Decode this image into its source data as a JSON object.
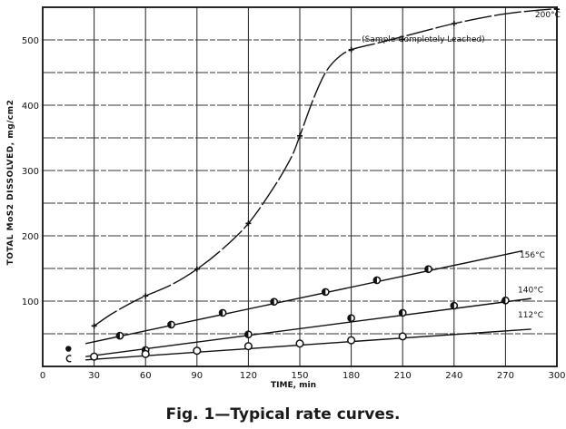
{
  "chart_data": {
    "type": "line",
    "title": "",
    "caption": "Fig. 1—Typical rate curves.",
    "xlabel": "TIME, min",
    "ylabel": "TOTAL MoS2 DISSOLVED, mg/cm2",
    "xlim": [
      0,
      300
    ],
    "ylim": [
      0,
      550
    ],
    "x_ticks": [
      0,
      30,
      60,
      90,
      120,
      150,
      180,
      210,
      240,
      270,
      300
    ],
    "y_ticks": [
      100,
      200,
      300,
      400,
      500
    ],
    "y_tick_labels": [
      "100",
      "200",
      "300",
      "400",
      "500"
    ],
    "grid": true,
    "grid_y_step": 50,
    "grid_x_step": 30,
    "annotations": [
      {
        "text": "(Sample Completely Leached)",
        "x": 222,
        "y": 497
      },
      {
        "text": "200°C",
        "x": 283,
        "y": 535
      },
      {
        "text": "156°C",
        "x": 274,
        "y": 167
      },
      {
        "text": "140°C",
        "x": 273,
        "y": 113
      },
      {
        "text": "112°C",
        "x": 273,
        "y": 75
      }
    ],
    "legend_markers": [
      {
        "label": "filled-dot",
        "x": 15,
        "y": 27,
        "style": "filled"
      },
      {
        "label": "open-circle",
        "x": 15,
        "y": 12,
        "style": "open"
      }
    ],
    "series": [
      {
        "name": "200°C",
        "marker": "plus",
        "line": "dash",
        "points": [
          [
            30,
            62
          ],
          [
            60,
            108
          ],
          [
            90,
            149
          ],
          [
            120,
            219
          ],
          [
            150,
            353
          ],
          [
            180,
            485
          ],
          [
            210,
            501
          ],
          [
            240,
            525
          ],
          [
            300,
            547
          ]
        ],
        "curve": [
          [
            30,
            62
          ],
          [
            40,
            80
          ],
          [
            50,
            95
          ],
          [
            60,
            108
          ],
          [
            75,
            125
          ],
          [
            90,
            149
          ],
          [
            105,
            180
          ],
          [
            120,
            219
          ],
          [
            135,
            275
          ],
          [
            145,
            320
          ],
          [
            150,
            353
          ],
          [
            158,
            410
          ],
          [
            165,
            450
          ],
          [
            172,
            472
          ],
          [
            180,
            485
          ],
          [
            195,
            495
          ],
          [
            210,
            505
          ],
          [
            240,
            525
          ],
          [
            270,
            540
          ],
          [
            300,
            548
          ]
        ]
      },
      {
        "name": "156°C",
        "marker": "half-filled-circle",
        "line": "solid",
        "points": [
          [
            45,
            47
          ],
          [
            75,
            64
          ],
          [
            105,
            82
          ],
          [
            135,
            99
          ],
          [
            165,
            114
          ],
          [
            195,
            132
          ],
          [
            225,
            149
          ]
        ],
        "curve": [
          [
            25,
            35
          ],
          [
            280,
            177
          ]
        ]
      },
      {
        "name": "140°C",
        "marker": "half-filled-circle",
        "line": "solid",
        "points": [
          [
            60,
            25
          ],
          [
            120,
            49
          ],
          [
            180,
            74
          ],
          [
            210,
            82
          ],
          [
            240,
            93
          ],
          [
            270,
            101
          ]
        ],
        "curve": [
          [
            25,
            15
          ],
          [
            285,
            104
          ]
        ]
      },
      {
        "name": "112°C",
        "marker": "open-circle",
        "line": "solid",
        "points": [
          [
            30,
            15
          ],
          [
            60,
            19
          ],
          [
            90,
            24
          ],
          [
            120,
            31
          ],
          [
            150,
            35
          ],
          [
            180,
            40
          ],
          [
            210,
            46
          ]
        ],
        "curve": [
          [
            25,
            10
          ],
          [
            285,
            57
          ]
        ]
      }
    ]
  }
}
